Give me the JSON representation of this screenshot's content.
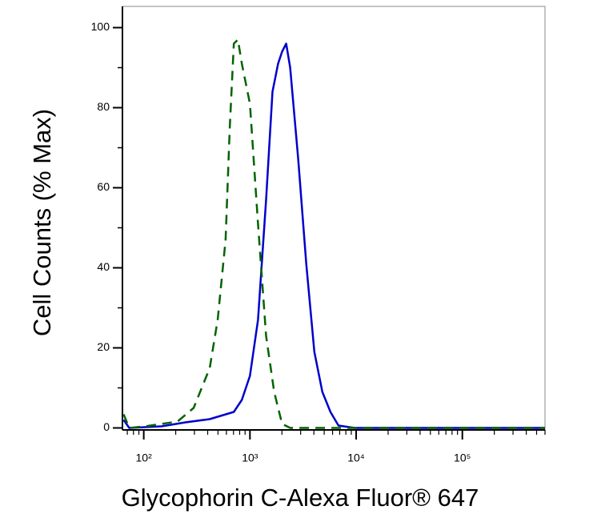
{
  "chart_data": {
    "type": "line",
    "xlabel": "Glycophorin C-Alexa Fluor® 647",
    "ylabel": "Cell Counts (% Max)",
    "xscale": "log",
    "xlim": [
      63,
      600000
    ],
    "ylim": [
      -0.5,
      105.3
    ],
    "xticks": [
      {
        "value": 100,
        "label": "10²"
      },
      {
        "value": 1000,
        "label": "10³"
      },
      {
        "value": 10000,
        "label": "10⁴"
      },
      {
        "value": 100000,
        "label": "10⁵"
      }
    ],
    "yticks": [
      0,
      20,
      40,
      60,
      80,
      100
    ],
    "series": [
      {
        "color": "#0000cc",
        "dash": false,
        "x": [
          64.7,
          73,
          147,
          248,
          418,
          593,
          705,
          839,
          1000,
          1191,
          1418,
          1630,
          1841,
          2009,
          2192,
          2393,
          2849,
          3392,
          4038,
          4808,
          5724,
          6814,
          9660,
          600000
        ],
        "values": [
          2,
          0,
          0.4,
          1.4,
          2.2,
          3.4,
          4,
          7,
          13,
          27,
          57,
          84,
          91,
          94,
          96,
          90,
          67,
          41,
          19,
          9,
          4,
          0.6,
          0,
          0
        ]
      },
      {
        "color": "#006400",
        "dash": true,
        "x": [
          64.7,
          73,
          103.5,
          147,
          208,
          295,
          418,
          497,
          590,
          646,
          705,
          770,
          839,
          1000,
          1191,
          1418,
          1690,
          2009,
          2393,
          9660,
          600000
        ],
        "values": [
          3.4,
          0,
          0.4,
          1,
          1.6,
          5,
          15,
          27,
          47,
          75,
          96,
          97,
          91,
          81,
          51,
          23,
          9,
          1,
          0,
          0,
          0
        ]
      }
    ]
  }
}
